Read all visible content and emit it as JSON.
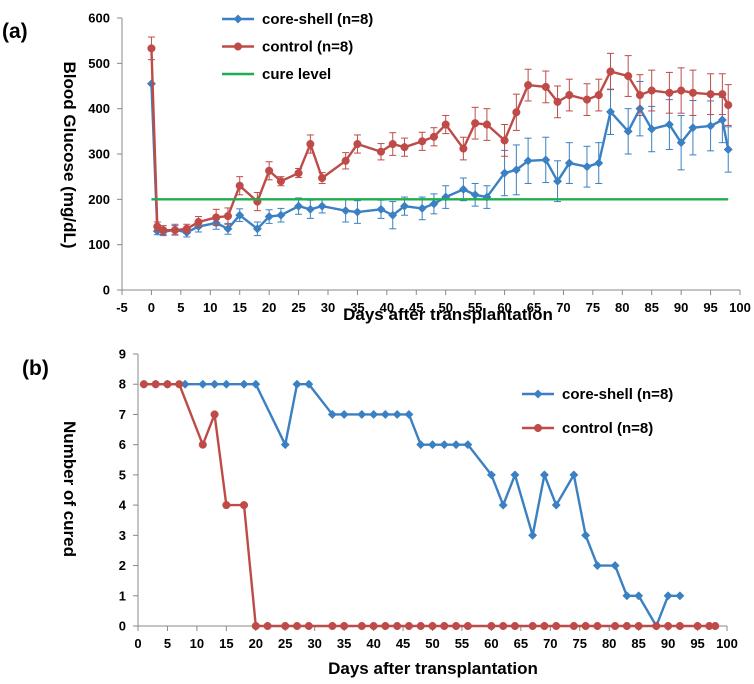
{
  "chart_data": [
    {
      "panel_label": "(a)",
      "type": "line",
      "xlabel": "Days after transplantation",
      "ylabel": "Blood Glucose (mg/dL)",
      "xlim": [
        -5,
        100
      ],
      "ylim": [
        0,
        600
      ],
      "xticks": [
        "-5",
        "0",
        "5",
        "10",
        "15",
        "20",
        "25",
        "30",
        "35",
        "40",
        "45",
        "50",
        "55",
        "60",
        "65",
        "70",
        "75",
        "80",
        "85",
        "90",
        "95",
        "100"
      ],
      "yticks": [
        "0",
        "100",
        "200",
        "300",
        "400",
        "500",
        "600"
      ],
      "legend_position": "top-center",
      "series": [
        {
          "name": "core-shell (n=8)",
          "color": "#3a80c2",
          "marker": "diamond",
          "x": [
            0,
            1,
            2,
            4,
            6,
            8,
            11,
            13,
            15,
            18,
            20,
            22,
            25,
            27,
            29,
            33,
            35,
            39,
            41,
            43,
            46,
            48,
            50,
            53,
            55,
            57,
            60,
            62,
            64,
            67,
            69,
            71,
            74,
            76,
            78,
            81,
            83,
            85,
            88,
            90,
            92,
            95,
            97,
            98
          ],
          "y": [
            455,
            130,
            128,
            133,
            127,
            140,
            148,
            135,
            165,
            135,
            162,
            165,
            185,
            178,
            185,
            175,
            172,
            178,
            165,
            185,
            180,
            190,
            205,
            222,
            210,
            205,
            258,
            265,
            285,
            287,
            240,
            280,
            272,
            280,
            393,
            350,
            400,
            355,
            365,
            325,
            358,
            362,
            375,
            310
          ],
          "err": [
            0,
            8,
            8,
            12,
            10,
            12,
            14,
            12,
            14,
            15,
            15,
            15,
            18,
            20,
            15,
            25,
            25,
            20,
            30,
            20,
            25,
            22,
            25,
            25,
            25,
            25,
            50,
            55,
            50,
            50,
            45,
            45,
            45,
            45,
            50,
            50,
            60,
            50,
            55,
            60,
            60,
            55,
            50,
            50
          ]
        },
        {
          "name": "control (n=8)",
          "color": "#be4b48",
          "marker": "circle",
          "x": [
            0,
            1,
            2,
            4,
            6,
            8,
            11,
            13,
            15,
            18,
            20,
            22,
            25,
            27,
            29,
            33,
            35,
            39,
            41,
            43,
            46,
            48,
            50,
            53,
            55,
            57,
            60,
            62,
            64,
            67,
            69,
            71,
            74,
            76,
            78,
            81,
            83,
            85,
            88,
            90,
            92,
            95,
            97,
            98
          ],
          "y": [
            533,
            140,
            132,
            132,
            135,
            150,
            160,
            163,
            230,
            195,
            263,
            240,
            258,
            322,
            247,
            285,
            322,
            305,
            322,
            315,
            328,
            338,
            365,
            312,
            368,
            365,
            330,
            392,
            452,
            448,
            415,
            430,
            420,
            430,
            482,
            472,
            430,
            440,
            435,
            440,
            435,
            432,
            432,
            408
          ],
          "err": [
            25,
            10,
            10,
            10,
            10,
            12,
            18,
            18,
            20,
            20,
            20,
            10,
            10,
            20,
            12,
            18,
            20,
            18,
            25,
            20,
            20,
            20,
            20,
            25,
            35,
            35,
            35,
            40,
            35,
            35,
            35,
            35,
            35,
            35,
            40,
            45,
            45,
            45,
            45,
            50,
            50,
            45,
            45,
            45
          ]
        },
        {
          "name": "cure level",
          "color": "#1fad4e",
          "marker": "none",
          "x": [
            0,
            98
          ],
          "y": [
            200,
            200
          ]
        }
      ]
    },
    {
      "panel_label": "(b)",
      "type": "line",
      "xlabel": "Days after transplantation",
      "ylabel": "Number of cured",
      "xlim": [
        0,
        100
      ],
      "ylim": [
        0,
        9
      ],
      "xticks": [
        "0",
        "5",
        "10",
        "15",
        "20",
        "25",
        "30",
        "35",
        "40",
        "45",
        "50",
        "55",
        "60",
        "65",
        "70",
        "75",
        "80",
        "85",
        "90",
        "95",
        "100"
      ],
      "yticks": [
        "0",
        "1",
        "2",
        "3",
        "4",
        "5",
        "6",
        "7",
        "8",
        "9"
      ],
      "legend_position": "top-right",
      "series": [
        {
          "name": "core-shell (n=8)",
          "color": "#3a80c2",
          "marker": "diamond",
          "x": [
            1,
            3,
            5,
            8,
            11,
            13,
            15,
            18,
            20,
            25,
            27,
            29,
            33,
            35,
            38,
            40,
            42,
            44,
            46,
            48,
            50,
            52,
            54,
            56,
            60,
            62,
            64,
            67,
            69,
            71,
            74,
            76,
            78,
            81,
            83,
            85,
            88,
            90,
            92
          ],
          "y": [
            8,
            8,
            8,
            8,
            8,
            8,
            8,
            8,
            8,
            6,
            8,
            8,
            7,
            7,
            7,
            7,
            7,
            7,
            7,
            6,
            6,
            6,
            6,
            6,
            5,
            4,
            5,
            3,
            5,
            4,
            5,
            3,
            2,
            2,
            1,
            1,
            0,
            1,
            1
          ]
        },
        {
          "name": "control (n=8)",
          "color": "#be4b48",
          "marker": "circle",
          "x": [
            1,
            3,
            5,
            7,
            11,
            13,
            15,
            18,
            20,
            22,
            25,
            27,
            29,
            33,
            35,
            38,
            40,
            42,
            44,
            46,
            48,
            50,
            52,
            54,
            56,
            60,
            62,
            64,
            67,
            69,
            71,
            74,
            76,
            78,
            81,
            83,
            85,
            88,
            90,
            92,
            95,
            97,
            98
          ],
          "y": [
            8,
            8,
            8,
            8,
            6,
            7,
            4,
            4,
            0,
            0,
            0,
            0,
            0,
            0,
            0,
            0,
            0,
            0,
            0,
            0,
            0,
            0,
            0,
            0,
            0,
            0,
            0,
            0,
            0,
            0,
            0,
            0,
            0,
            0,
            0,
            0,
            0,
            0,
            0,
            0,
            0,
            0,
            0
          ]
        }
      ]
    }
  ]
}
